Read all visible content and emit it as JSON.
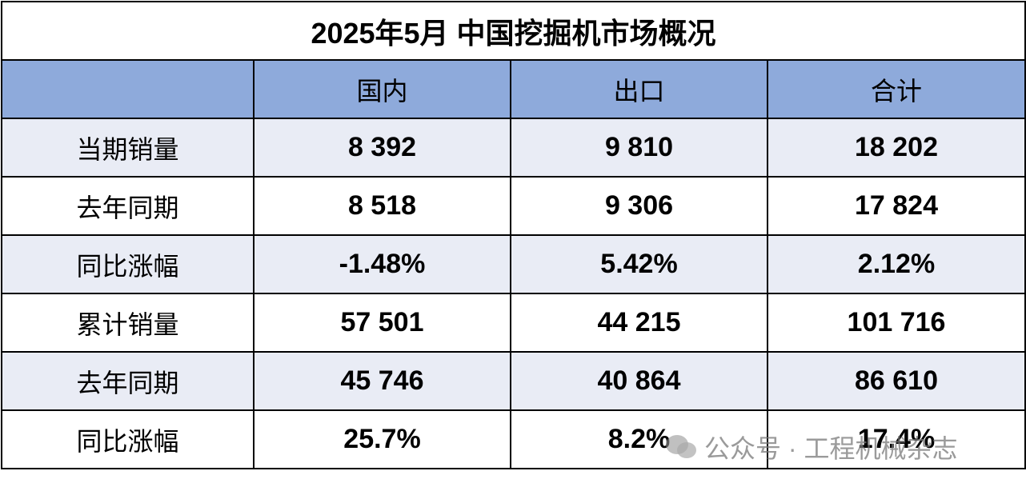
{
  "title": "2025年5月 中国挖掘机市场概况",
  "table": {
    "header": [
      "国内",
      "出口",
      "合计"
    ],
    "rows": [
      [
        "当期销量",
        "8 392",
        "9 810",
        "18 202"
      ],
      [
        "去年同期",
        "8 518",
        "9 306",
        "17 824"
      ],
      [
        "同比涨幅",
        "-1.48%",
        "5.42%",
        "2.12%"
      ],
      [
        "累计销量",
        "57 501",
        "44 215",
        "101 716"
      ],
      [
        "去年同期",
        "45 746",
        "40 864",
        "86 610"
      ],
      [
        "同比涨幅",
        "25.7%",
        "8.2%",
        "17.4%"
      ]
    ]
  },
  "watermark": "公众号 · 工程机械杂志"
}
